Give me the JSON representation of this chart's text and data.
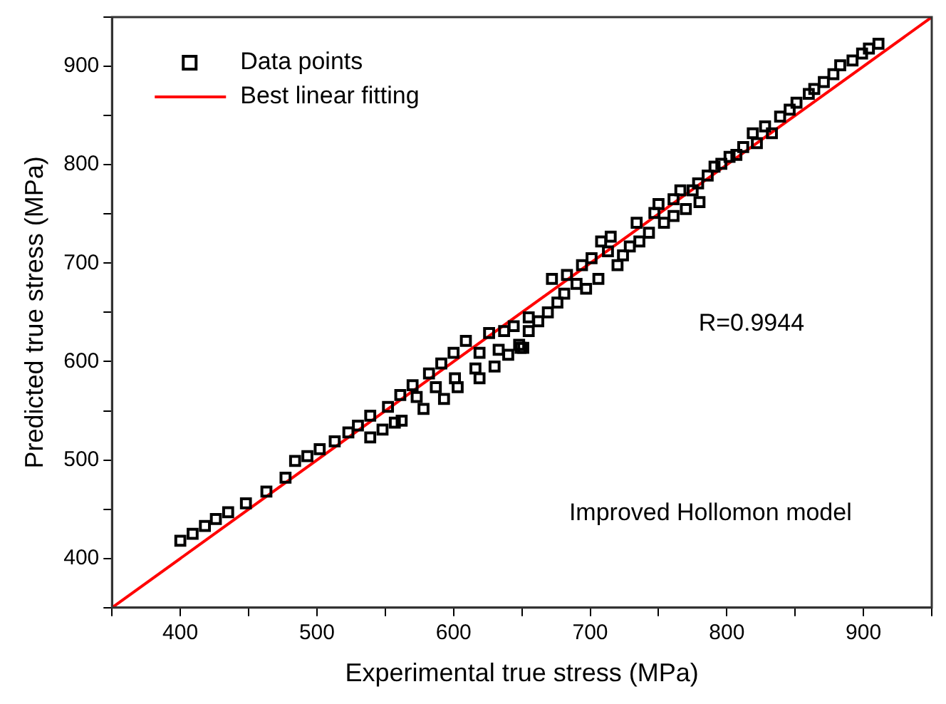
{
  "chart_data": {
    "type": "scatter",
    "xlabel": "Experimental true stress (MPa)",
    "ylabel": "Predicted true stress (MPa)",
    "xlim": [
      350,
      950
    ],
    "ylim": [
      350,
      950
    ],
    "xticks": [
      {
        "value": 350,
        "label": null
      },
      400,
      {
        "value": 450,
        "label": null
      },
      500,
      {
        "value": 550,
        "label": null
      },
      600,
      {
        "value": 650,
        "label": null
      },
      700,
      {
        "value": 750,
        "label": null
      },
      800,
      {
        "value": 850,
        "label": null
      },
      900,
      {
        "value": 950,
        "label": null
      }
    ],
    "yticks": [
      {
        "value": 350,
        "label": null
      },
      400,
      {
        "value": 450,
        "label": null
      },
      500,
      {
        "value": 550,
        "label": null
      },
      600,
      {
        "value": 650,
        "label": null
      },
      700,
      {
        "value": 750,
        "label": null
      },
      800,
      {
        "value": 850,
        "label": null
      },
      900,
      {
        "value": 950,
        "label": null
      }
    ],
    "grid": false,
    "legend": "top left",
    "annotations": [
      "R=0.9944",
      "Improved Hollomon model"
    ],
    "series": [
      {
        "name": "Data points",
        "color": "#000000",
        "marker": "square",
        "x": [
          400,
          409,
          418,
          426,
          435,
          448,
          463,
          477,
          484,
          493,
          502,
          513,
          523,
          530,
          539,
          539,
          548,
          552,
          557,
          562,
          561,
          570,
          573,
          578,
          582,
          587,
          593,
          591,
          600,
          603,
          601,
          609,
          616,
          619,
          619,
          626,
          630,
          633,
          637,
          640,
          644,
          648,
          651,
          655,
          649,
          655,
          662,
          669,
          672,
          676,
          681,
          683,
          690,
          694,
          697,
          701,
          706,
          708,
          713,
          715,
          720,
          724,
          729,
          734,
          736,
          743,
          747,
          750,
          754,
          761,
          761,
          766,
          770,
          775,
          780,
          779,
          786,
          791,
          796,
          802,
          807,
          812,
          819,
          822,
          828,
          833,
          839,
          846,
          851,
          860,
          864,
          871,
          878,
          883,
          892,
          899,
          904,
          911
        ],
        "values": [
          418,
          425,
          433,
          440,
          447,
          456,
          468,
          482,
          499,
          504,
          511,
          519,
          528,
          535,
          523,
          545,
          531,
          554,
          538,
          540,
          566,
          576,
          564,
          552,
          588,
          574,
          562,
          598,
          609,
          574,
          583,
          621,
          593,
          609,
          583,
          629,
          595,
          612,
          631,
          607,
          636,
          617,
          614,
          645,
          614,
          631,
          641,
          650,
          684,
          660,
          669,
          688,
          679,
          698,
          674,
          705,
          684,
          722,
          712,
          727,
          698,
          708,
          717,
          741,
          722,
          731,
          751,
          760,
          741,
          765,
          748,
          774,
          755,
          774,
          762,
          781,
          789,
          798,
          801,
          808,
          810,
          818,
          832,
          822,
          839,
          832,
          849,
          856,
          863,
          872,
          877,
          884,
          892,
          901,
          906,
          913,
          918,
          923
        ]
      },
      {
        "name": "Best linear fitting",
        "type": "line",
        "color": "#ff0000",
        "marker": "none",
        "line_style": "solid",
        "x": [
          350,
          950
        ],
        "values": [
          350,
          950
        ]
      }
    ]
  }
}
